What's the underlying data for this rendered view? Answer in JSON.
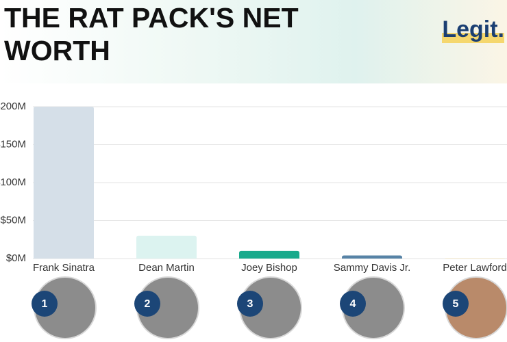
{
  "chart_data": {
    "type": "bar",
    "title": "THE RAT PACK'S NET WORTH",
    "logo": "Legit.",
    "categories": [
      "Frank Sinatra",
      "Dean Martin",
      "Joey Bishop",
      "Sammy Davis Jr.",
      "Peter Lawford"
    ],
    "values": [
      200,
      30,
      10,
      4,
      0.5
    ],
    "colors": [
      "#d5dfe8",
      "#dcf3f0",
      "#19aa8c",
      "#5783a6",
      "#f2dca8"
    ],
    "ranks": [
      1,
      2,
      3,
      4,
      5
    ],
    "ylim": [
      0,
      200
    ],
    "yticks": [
      {
        "value": 0,
        "label": "$0M"
      },
      {
        "value": 50,
        "label": "$50M"
      },
      {
        "value": 100,
        "label": "$100M"
      },
      {
        "value": 150,
        "label": "$150M"
      },
      {
        "value": 200,
        "label": "$200M"
      }
    ],
    "grid": true
  }
}
